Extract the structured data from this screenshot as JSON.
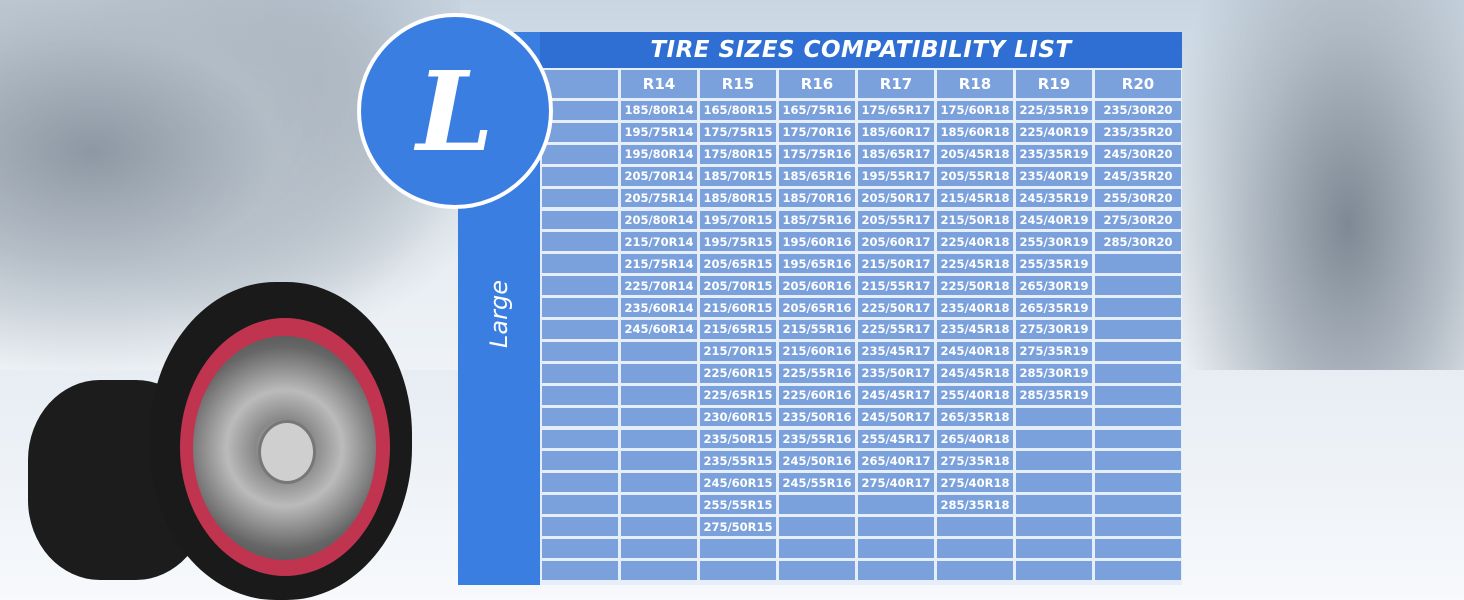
{
  "title": "TIRE SIZES COMPATIBILITY LIST",
  "size_badge": "L",
  "size_label": "Large",
  "colors": {
    "header": "#2f6fd4",
    "badge": "#3a7ee2",
    "cell": "#7ba1dc"
  },
  "columns": [
    {
      "header": "R14",
      "sizes": [
        "185/80R14",
        "195/75R14",
        "195/80R14",
        "205/70R14",
        "205/75R14",
        "205/80R14",
        "215/70R14",
        "215/75R14",
        "225/70R14",
        "235/60R14",
        "245/60R14"
      ]
    },
    {
      "header": "R15",
      "sizes": [
        "165/80R15",
        "175/75R15",
        "175/80R15",
        "185/70R15",
        "185/80R15",
        "195/70R15",
        "195/75R15",
        "205/65R15",
        "205/70R15",
        "215/60R15",
        "215/65R15",
        "215/70R15",
        "225/60R15",
        "225/65R15",
        "230/60R15",
        "235/50R15",
        "235/55R15",
        "245/60R15",
        "255/55R15",
        "275/50R15"
      ]
    },
    {
      "header": "R16",
      "sizes": [
        "165/75R16",
        "175/70R16",
        "175/75R16",
        "185/65R16",
        "185/70R16",
        "185/75R16",
        "195/60R16",
        "195/65R16",
        "205/60R16",
        "205/65R16",
        "215/55R16",
        "215/60R16",
        "225/55R16",
        "225/60R16",
        "235/50R16",
        "235/55R16",
        "245/50R16",
        "245/55R16"
      ]
    },
    {
      "header": "R17",
      "sizes": [
        "175/65R17",
        "185/60R17",
        "185/65R17",
        "195/55R17",
        "205/50R17",
        "205/55R17",
        "205/60R17",
        "215/50R17",
        "215/55R17",
        "225/50R17",
        "225/55R17",
        "235/45R17",
        "235/50R17",
        "245/45R17",
        "245/50R17",
        "255/45R17",
        "265/40R17",
        "275/40R17"
      ]
    },
    {
      "header": "R18",
      "sizes": [
        "175/60R18",
        "185/60R18",
        "205/45R18",
        "205/55R18",
        "215/45R18",
        "215/50R18",
        "225/40R18",
        "225/45R18",
        "225/50R18",
        "235/40R18",
        "235/45R18",
        "245/40R18",
        "245/45R18",
        "255/40R18",
        "265/35R18",
        "265/40R18",
        "275/35R18",
        "275/40R18",
        "285/35R18"
      ]
    },
    {
      "header": "R19",
      "sizes": [
        "225/35R19",
        "225/40R19",
        "235/35R19",
        "235/40R19",
        "245/35R19",
        "245/40R19",
        "255/30R19",
        "255/35R19",
        "265/30R19",
        "265/35R19",
        "275/30R19",
        "275/35R19",
        "285/30R19",
        "285/35R19"
      ]
    },
    {
      "header": "R20",
      "sizes": [
        "235/30R20",
        "235/35R20",
        "245/30R20",
        "245/35R20",
        "255/30R20",
        "275/30R20",
        "285/30R20"
      ]
    }
  ]
}
